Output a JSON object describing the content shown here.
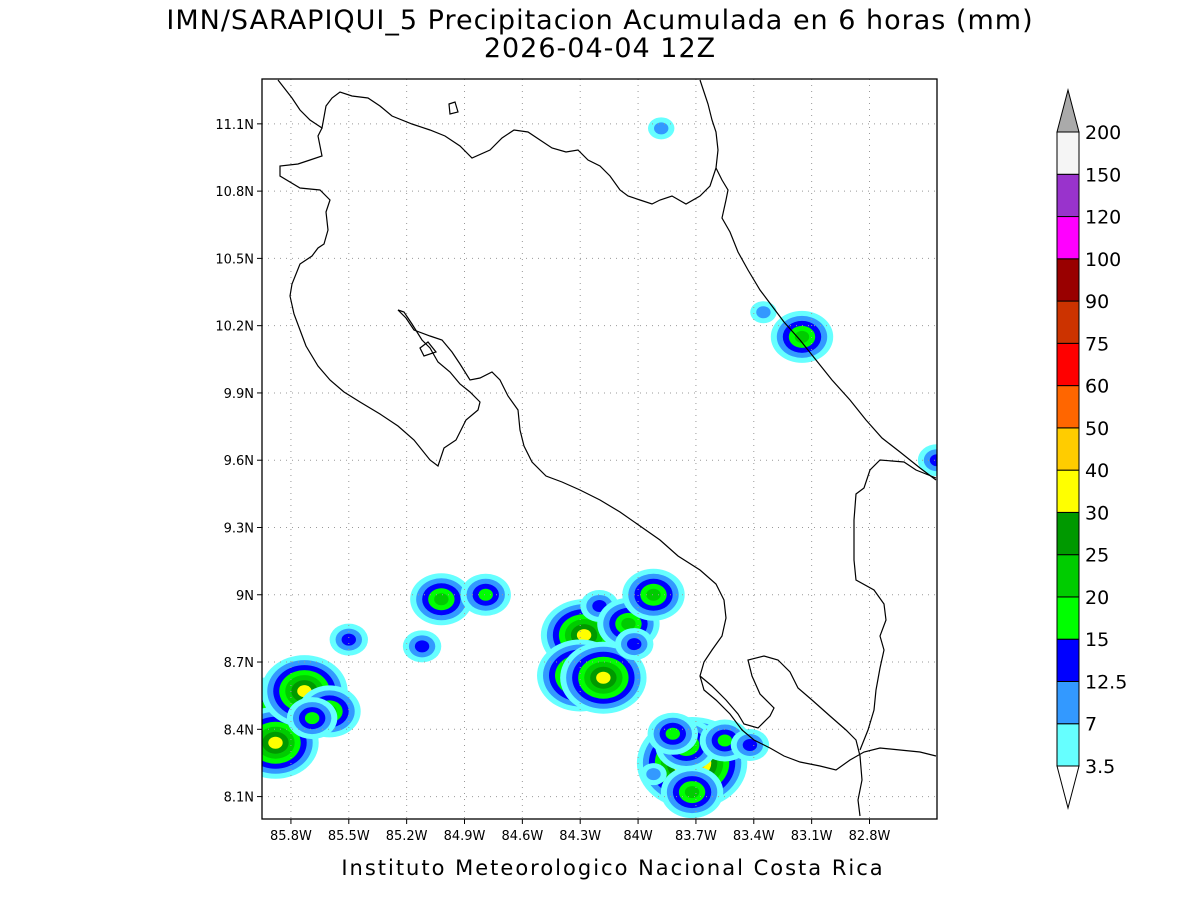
{
  "map": {
    "title_line_1": "IMN/SARAPIQUI_5 Precipitacion Acumulada en 6 horas (mm)",
    "title_line_2": "2026-04-04 12Z",
    "footer": "Instituto Meteorologico Nacional Costa Rica",
    "lon_range": [
      -85.95,
      -82.45
    ],
    "lat_range": [
      8.0,
      11.3
    ],
    "lon_ticks": [
      {
        "value": -85.8,
        "label": "85.8W"
      },
      {
        "value": -85.5,
        "label": "85.5W"
      },
      {
        "value": -85.2,
        "label": "85.2W"
      },
      {
        "value": -84.9,
        "label": "84.9W"
      },
      {
        "value": -84.6,
        "label": "84.6W"
      },
      {
        "value": -84.3,
        "label": "84.3W"
      },
      {
        "value": -84.0,
        "label": "84W"
      },
      {
        "value": -83.7,
        "label": "83.7W"
      },
      {
        "value": -83.4,
        "label": "83.4W"
      },
      {
        "value": -83.1,
        "label": "83.1W"
      },
      {
        "value": -82.8,
        "label": "82.8W"
      }
    ],
    "lat_ticks": [
      {
        "value": 8.1,
        "label": "8.1N"
      },
      {
        "value": 8.4,
        "label": "8.4N"
      },
      {
        "value": 8.7,
        "label": "8.7N"
      },
      {
        "value": 9.0,
        "label": "9N"
      },
      {
        "value": 9.3,
        "label": "9.3N"
      },
      {
        "value": 9.6,
        "label": "9.6N"
      },
      {
        "value": 9.9,
        "label": "9.9N"
      },
      {
        "value": 10.2,
        "label": "10.2N"
      },
      {
        "value": 10.5,
        "label": "10.5N"
      },
      {
        "value": 10.8,
        "label": "10.8N"
      },
      {
        "value": 11.1,
        "label": "11.1N"
      }
    ],
    "grid": "dotted",
    "legend_placement": "right",
    "colorbar": [
      {
        "label": "3.5",
        "color": "#66ffff"
      },
      {
        "label": "7",
        "color": "#3399ff"
      },
      {
        "label": "12.5",
        "color": "#0000ff"
      },
      {
        "label": "15",
        "color": "#00ff00"
      },
      {
        "label": "20",
        "color": "#00cc00"
      },
      {
        "label": "25",
        "color": "#009900"
      },
      {
        "label": "30",
        "color": "#ffff00"
      },
      {
        "label": "40",
        "color": "#ffcc00"
      },
      {
        "label": "50",
        "color": "#ff6600"
      },
      {
        "label": "60",
        "color": "#ff0000"
      },
      {
        "label": "75",
        "color": "#cc3300"
      },
      {
        "label": "90",
        "color": "#990000"
      },
      {
        "label": "100",
        "color": "#ff00ff"
      },
      {
        "label": "120",
        "color": "#9933cc"
      },
      {
        "label": "150",
        "color": "#f5f5f5"
      },
      {
        "label": "200",
        "color": null
      }
    ],
    "colorbar_overflow_color": "#aaaaaa",
    "colorbar_underflow_color": "#ffffff",
    "rain_cells": [
      {
        "lon": -83.72,
        "lat": 8.25,
        "peak": "50"
      },
      {
        "lon": -83.75,
        "lat": 8.33,
        "peak": "20"
      },
      {
        "lon": -83.82,
        "lat": 8.38,
        "peak": "15"
      },
      {
        "lon": -83.55,
        "lat": 8.35,
        "peak": "15"
      },
      {
        "lon": -83.42,
        "lat": 8.33,
        "peak": "12.5"
      },
      {
        "lon": -83.72,
        "lat": 8.12,
        "peak": "20"
      },
      {
        "lon": -83.92,
        "lat": 8.2,
        "peak": "7"
      },
      {
        "lon": -84.28,
        "lat": 8.82,
        "peak": "30"
      },
      {
        "lon": -84.3,
        "lat": 8.64,
        "peak": "30"
      },
      {
        "lon": -84.18,
        "lat": 8.63,
        "peak": "30"
      },
      {
        "lon": -84.2,
        "lat": 8.95,
        "peak": "12.5"
      },
      {
        "lon": -84.05,
        "lat": 8.87,
        "peak": "20"
      },
      {
        "lon": -83.92,
        "lat": 9.0,
        "peak": "20"
      },
      {
        "lon": -84.02,
        "lat": 8.78,
        "peak": "12.5"
      },
      {
        "lon": -85.95,
        "lat": 8.47,
        "peak": "30"
      },
      {
        "lon": -85.83,
        "lat": 8.48,
        "peak": "30"
      },
      {
        "lon": -85.88,
        "lat": 8.34,
        "peak": "30"
      },
      {
        "lon": -85.73,
        "lat": 8.57,
        "peak": "30"
      },
      {
        "lon": -85.6,
        "lat": 8.48,
        "peak": "20"
      },
      {
        "lon": -85.69,
        "lat": 8.45,
        "peak": "15"
      },
      {
        "lon": -85.02,
        "lat": 8.98,
        "peak": "20"
      },
      {
        "lon": -84.79,
        "lat": 9.0,
        "peak": "15"
      },
      {
        "lon": -85.12,
        "lat": 8.77,
        "peak": "12.5"
      },
      {
        "lon": -85.5,
        "lat": 8.8,
        "peak": "12.5"
      },
      {
        "lon": -83.15,
        "lat": 10.15,
        "peak": "20"
      },
      {
        "lon": -83.35,
        "lat": 10.26,
        "peak": "7"
      },
      {
        "lon": -82.45,
        "lat": 9.6,
        "peak": "12.5"
      },
      {
        "lon": -83.88,
        "lat": 11.08,
        "peak": "7"
      }
    ]
  }
}
